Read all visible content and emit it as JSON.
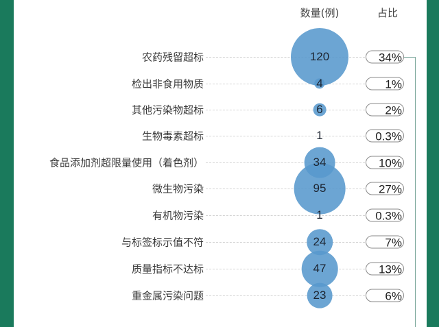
{
  "headers": {
    "count": "数量(例)",
    "ratio": "占比"
  },
  "colors": {
    "frame": "#1a7a5c",
    "bubble": "#5898cd",
    "connector": "#7aa69a"
  },
  "rows": [
    {
      "label": "农药残留超标",
      "count": "120",
      "ratio": "34%"
    },
    {
      "label": "检出非食用物质",
      "count": "4",
      "ratio": "1%"
    },
    {
      "label": "其他污染物超标",
      "count": "6",
      "ratio": "2%"
    },
    {
      "label": "生物毒素超标",
      "count": "1",
      "ratio": "0.3%"
    },
    {
      "label": "食品添加剂超限量使用（着色剂）",
      "count": "34",
      "ratio": "10%"
    },
    {
      "label": "微生物污染",
      "count": "95",
      "ratio": "27%"
    },
    {
      "label": "有机物污染",
      "count": "1",
      "ratio": "0.3%"
    },
    {
      "label": "与标签标示值不符",
      "count": "24",
      "ratio": "7%"
    },
    {
      "label": "质量指标不达标",
      "count": "47",
      "ratio": "13%"
    },
    {
      "label": "重金属污染问题",
      "count": "23",
      "ratio": "6%"
    }
  ],
  "chart_data": {
    "type": "bubble",
    "title": "",
    "columns": [
      "数量(例)",
      "占比"
    ],
    "categories": [
      "农药残留超标",
      "检出非食用物质",
      "其他污染物超标",
      "生物毒素超标",
      "食品添加剂超限量使用（着色剂）",
      "微生物污染",
      "有机物污染",
      "与标签标示值不符",
      "质量指标不达标",
      "重金属污染问题"
    ],
    "series": [
      {
        "name": "数量(例)",
        "values": [
          120,
          4,
          6,
          1,
          34,
          95,
          1,
          24,
          47,
          23
        ]
      },
      {
        "name": "占比",
        "values": [
          "34%",
          "1%",
          "2%",
          "0.3%",
          "10%",
          "27%",
          "0.3%",
          "7%",
          "13%",
          "6%"
        ]
      }
    ],
    "legend": "none",
    "grid": "dashed row guide lines"
  }
}
